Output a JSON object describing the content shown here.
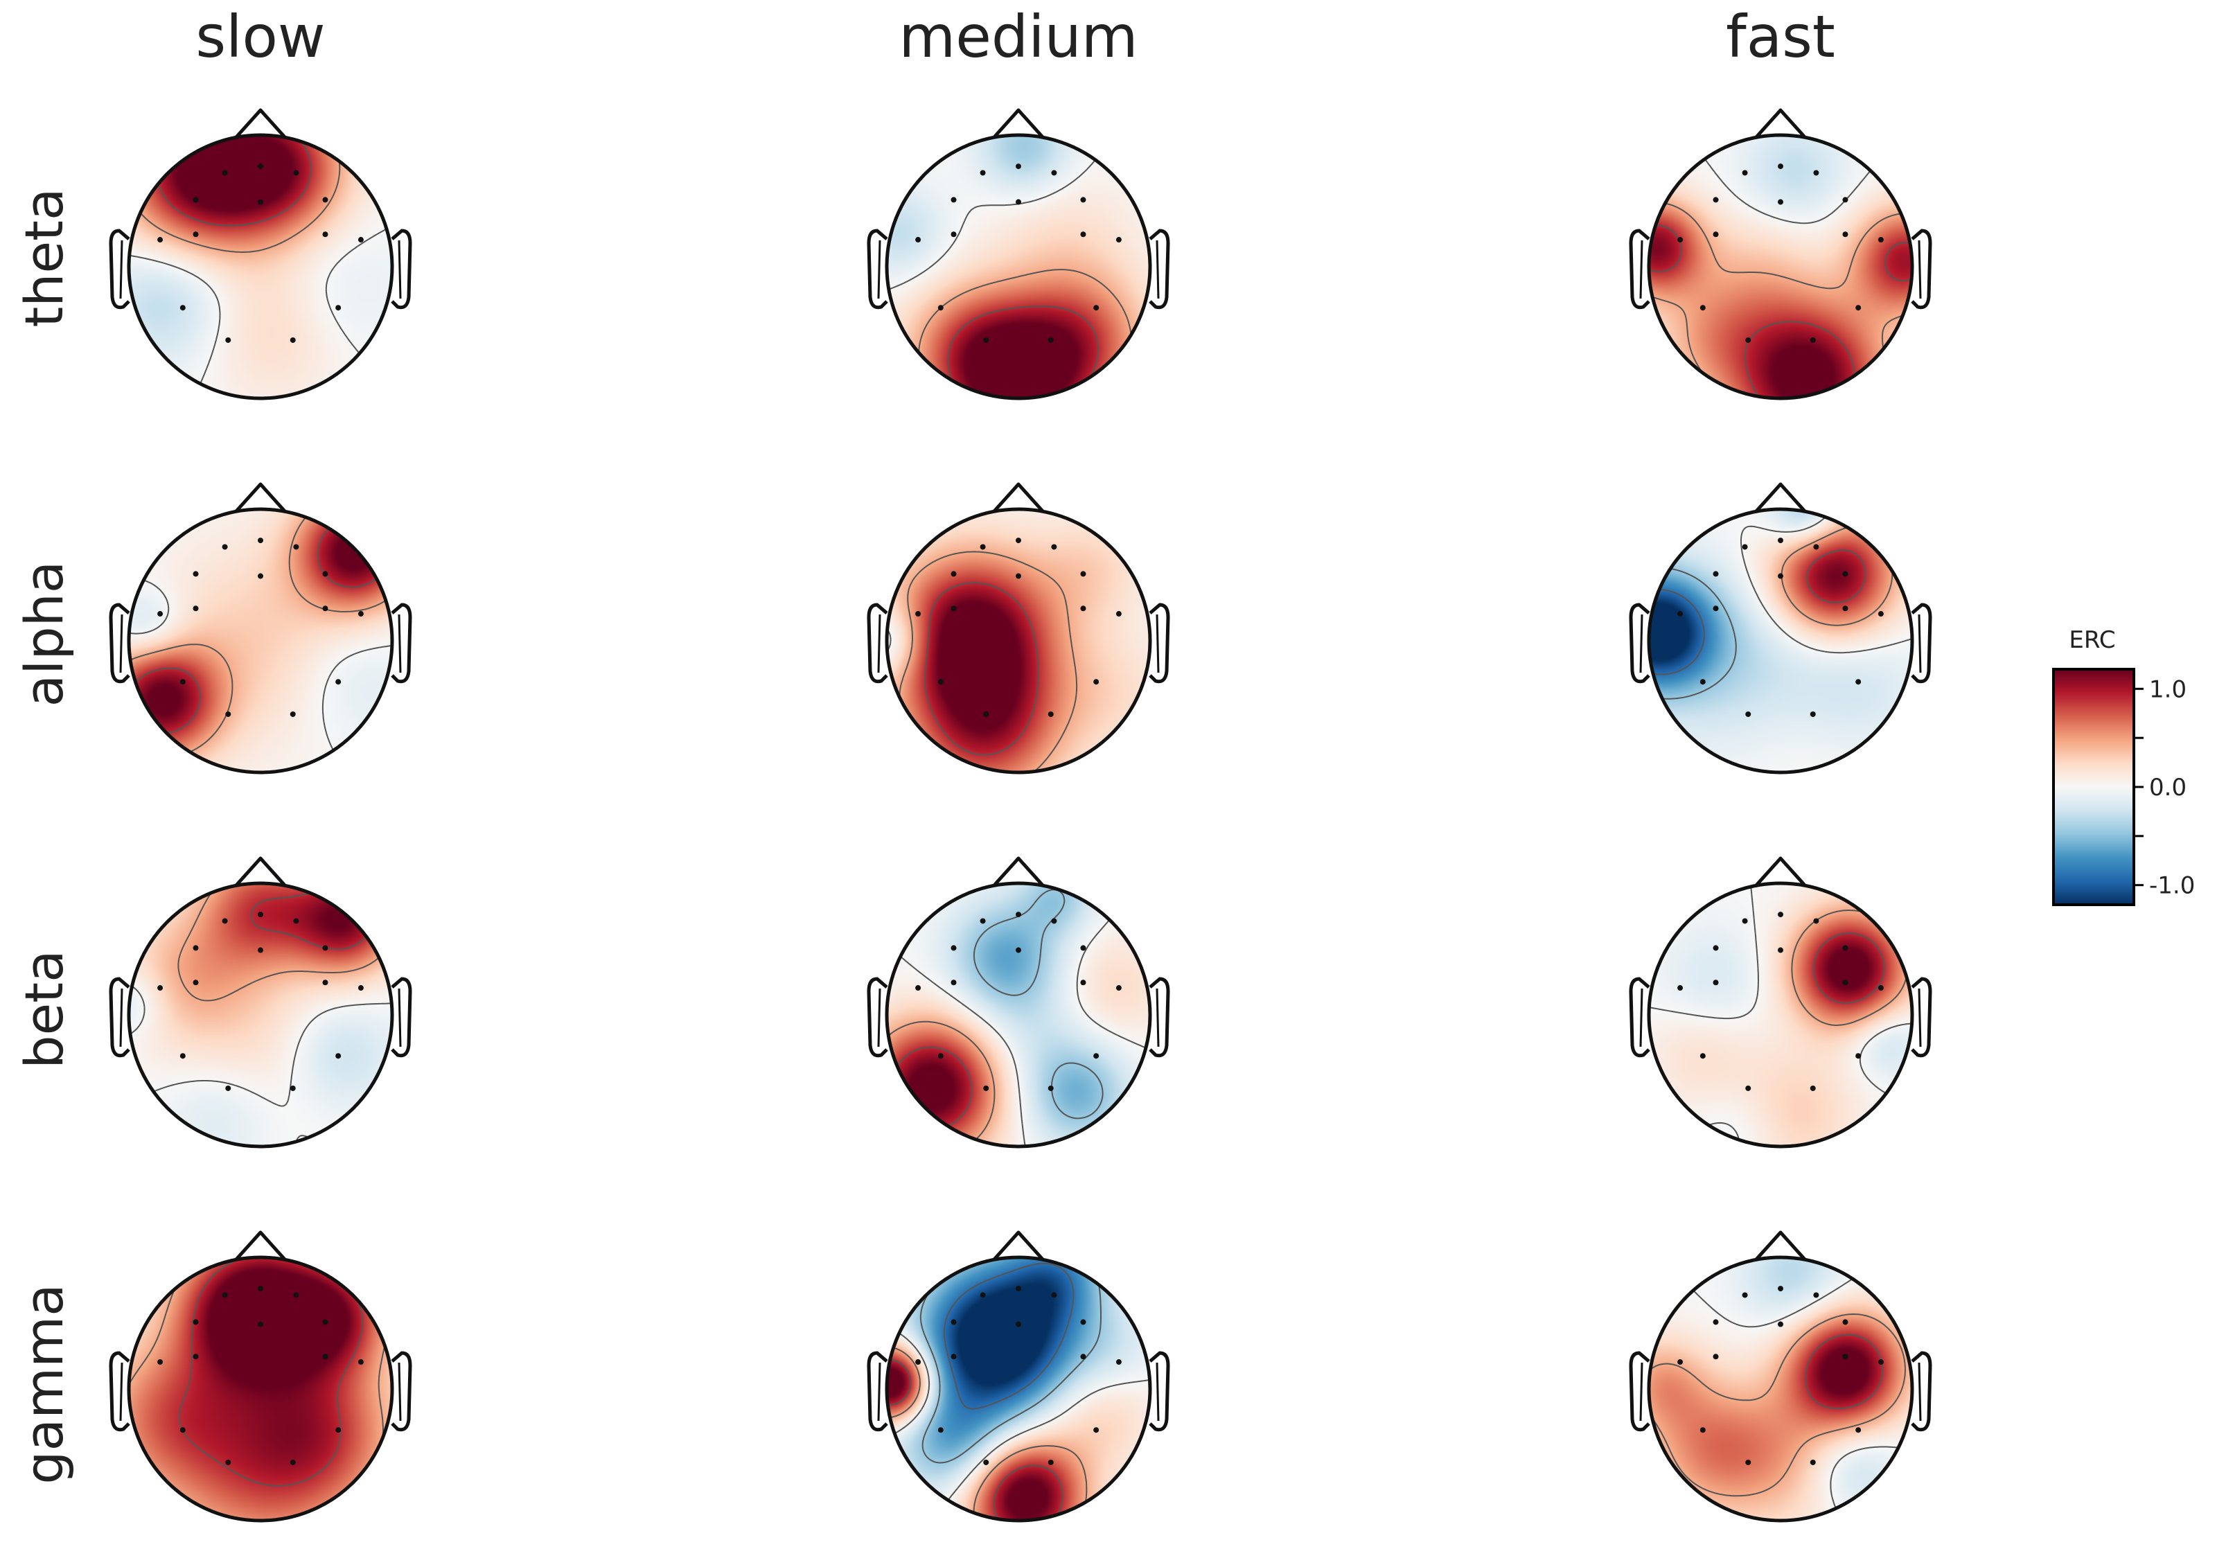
{
  "chart_data": {
    "type": "heatmap",
    "title": "",
    "columns": [
      "slow",
      "medium",
      "fast"
    ],
    "rows": [
      "theta",
      "alpha",
      "beta",
      "gamma"
    ],
    "colorbar": {
      "label": "ERC",
      "range": [
        -1.2,
        1.2
      ],
      "ticks": [
        1.0,
        0.0,
        -1.0
      ],
      "tick_labels": [
        "1.0",
        "0.0",
        "-1.0"
      ],
      "colormap": "RdBu_r",
      "colors": [
        "#053061",
        "#2166ac",
        "#4393c3",
        "#92c5de",
        "#d1e5f0",
        "#f7f7f7",
        "#fddbc7",
        "#f4a582",
        "#d6604d",
        "#b2182b",
        "#67001f"
      ]
    },
    "sensors": [
      [
        0.0,
        -0.93
      ],
      [
        -0.33,
        -0.87
      ],
      [
        0.33,
        -0.87
      ],
      [
        -0.6,
        -0.62
      ],
      [
        0.0,
        -0.6
      ],
      [
        0.6,
        -0.62
      ],
      [
        -0.93,
        -0.25
      ],
      [
        -0.6,
        -0.3
      ],
      [
        0.6,
        -0.3
      ],
      [
        0.93,
        -0.25
      ],
      [
        -0.72,
        0.38
      ],
      [
        0.72,
        0.38
      ],
      [
        -0.3,
        0.68
      ],
      [
        0.3,
        0.68
      ]
    ],
    "panels": [
      {
        "row": "theta",
        "column": "slow",
        "blobs": [
          [
            -0.45,
            -0.7,
            0.4,
            1.25
          ],
          [
            0.15,
            -0.75,
            0.35,
            0.95
          ],
          [
            -0.7,
            0.25,
            0.35,
            -0.35
          ],
          [
            0.6,
            0.2,
            0.35,
            -0.15
          ],
          [
            0.1,
            0.45,
            0.4,
            0.25
          ]
        ]
      },
      {
        "row": "theta",
        "column": "medium",
        "blobs": [
          [
            0.05,
            -0.9,
            0.25,
            -0.45
          ],
          [
            -0.9,
            -0.25,
            0.25,
            -0.3
          ],
          [
            0.0,
            0.85,
            0.38,
            1.3
          ],
          [
            0.5,
            0.55,
            0.35,
            0.6
          ],
          [
            -0.4,
            0.6,
            0.35,
            0.5
          ],
          [
            0.35,
            -0.15,
            0.4,
            0.2
          ]
        ]
      },
      {
        "row": "theta",
        "column": "fast",
        "blobs": [
          [
            0.1,
            -0.72,
            0.28,
            -0.3
          ],
          [
            -0.95,
            -0.15,
            0.25,
            1.1
          ],
          [
            0.95,
            -0.05,
            0.28,
            1.0
          ],
          [
            0.2,
            0.85,
            0.4,
            1.35
          ],
          [
            -0.55,
            0.55,
            0.3,
            0.35
          ],
          [
            -0.2,
            0.1,
            0.35,
            0.3
          ]
        ]
      },
      {
        "row": "alpha",
        "column": "slow",
        "blobs": [
          [
            0.72,
            -0.68,
            0.3,
            1.25
          ],
          [
            -0.85,
            -0.1,
            0.2,
            -0.35
          ],
          [
            -0.75,
            0.45,
            0.3,
            1.2
          ],
          [
            0.7,
            0.3,
            0.35,
            -0.2
          ],
          [
            0.0,
            0.0,
            0.55,
            0.3
          ]
        ]
      },
      {
        "row": "alpha",
        "column": "medium",
        "blobs": [
          [
            -0.35,
            -0.05,
            0.42,
            1.35
          ],
          [
            -0.25,
            0.65,
            0.4,
            0.9
          ],
          [
            -0.95,
            0.0,
            0.2,
            -0.5
          ],
          [
            0.55,
            -0.55,
            0.3,
            0.25
          ],
          [
            0.7,
            0.4,
            0.35,
            0.2
          ]
        ]
      },
      {
        "row": "alpha",
        "column": "fast",
        "blobs": [
          [
            0.4,
            -0.5,
            0.32,
            1.25
          ],
          [
            0.2,
            -0.95,
            0.2,
            -0.6
          ],
          [
            -0.95,
            -0.08,
            0.3,
            -1.4
          ],
          [
            -0.3,
            0.2,
            0.5,
            -0.35
          ],
          [
            0.6,
            0.35,
            0.35,
            -0.2
          ],
          [
            0.0,
            0.7,
            0.45,
            0.1
          ]
        ]
      },
      {
        "row": "beta",
        "column": "slow",
        "blobs": [
          [
            0.0,
            -0.8,
            0.32,
            0.8
          ],
          [
            0.65,
            -0.72,
            0.28,
            1.1
          ],
          [
            -0.55,
            -0.3,
            0.35,
            0.4
          ],
          [
            -0.95,
            -0.1,
            0.18,
            -0.25
          ],
          [
            0.6,
            0.3,
            0.3,
            -0.3
          ],
          [
            -0.3,
            0.75,
            0.3,
            -0.2
          ],
          [
            0.0,
            0.2,
            0.45,
            0.2
          ]
        ]
      },
      {
        "row": "beta",
        "column": "medium",
        "blobs": [
          [
            -0.1,
            -0.45,
            0.3,
            -0.6
          ],
          [
            0.3,
            -0.9,
            0.2,
            -0.4
          ],
          [
            -0.65,
            0.55,
            0.35,
            1.35
          ],
          [
            0.45,
            0.6,
            0.28,
            -0.55
          ],
          [
            0.7,
            -0.2,
            0.3,
            0.25
          ],
          [
            0.1,
            0.1,
            0.35,
            -0.2
          ]
        ]
      },
      {
        "row": "beta",
        "column": "fast",
        "blobs": [
          [
            0.52,
            -0.35,
            0.3,
            1.35
          ],
          [
            0.8,
            0.2,
            0.2,
            -0.3
          ],
          [
            -0.5,
            -0.25,
            0.3,
            -0.2
          ],
          [
            -0.6,
            0.3,
            0.3,
            0.2
          ],
          [
            0.1,
            0.75,
            0.35,
            0.3
          ],
          [
            -0.3,
            0.85,
            0.25,
            -0.15
          ]
        ]
      },
      {
        "row": "gamma",
        "column": "slow",
        "blobs": [
          [
            -0.05,
            -0.58,
            0.38,
            1.6
          ],
          [
            0.55,
            -0.55,
            0.3,
            0.9
          ],
          [
            -0.7,
            0.2,
            0.4,
            0.6
          ],
          [
            0.5,
            0.3,
            0.4,
            0.6
          ],
          [
            0.0,
            0.6,
            0.5,
            0.7
          ]
        ]
      },
      {
        "row": "gamma",
        "column": "medium",
        "blobs": [
          [
            -0.15,
            -0.38,
            0.4,
            -1.6
          ],
          [
            0.3,
            -0.85,
            0.25,
            -0.6
          ],
          [
            -0.95,
            -0.05,
            0.2,
            1.6
          ],
          [
            0.05,
            0.82,
            0.3,
            1.4
          ],
          [
            -0.5,
            0.4,
            0.3,
            -0.6
          ],
          [
            0.6,
            0.2,
            0.3,
            0.3
          ],
          [
            0.7,
            -0.3,
            0.25,
            -0.2
          ]
        ]
      },
      {
        "row": "gamma",
        "column": "fast",
        "blobs": [
          [
            0.5,
            -0.15,
            0.3,
            1.35
          ],
          [
            0.1,
            -0.85,
            0.28,
            -0.35
          ],
          [
            -0.55,
            0.45,
            0.35,
            0.5
          ],
          [
            0.0,
            0.5,
            0.4,
            0.4
          ],
          [
            0.55,
            0.6,
            0.25,
            -0.35
          ],
          [
            -0.9,
            -0.05,
            0.25,
            0.45
          ]
        ]
      }
    ]
  }
}
